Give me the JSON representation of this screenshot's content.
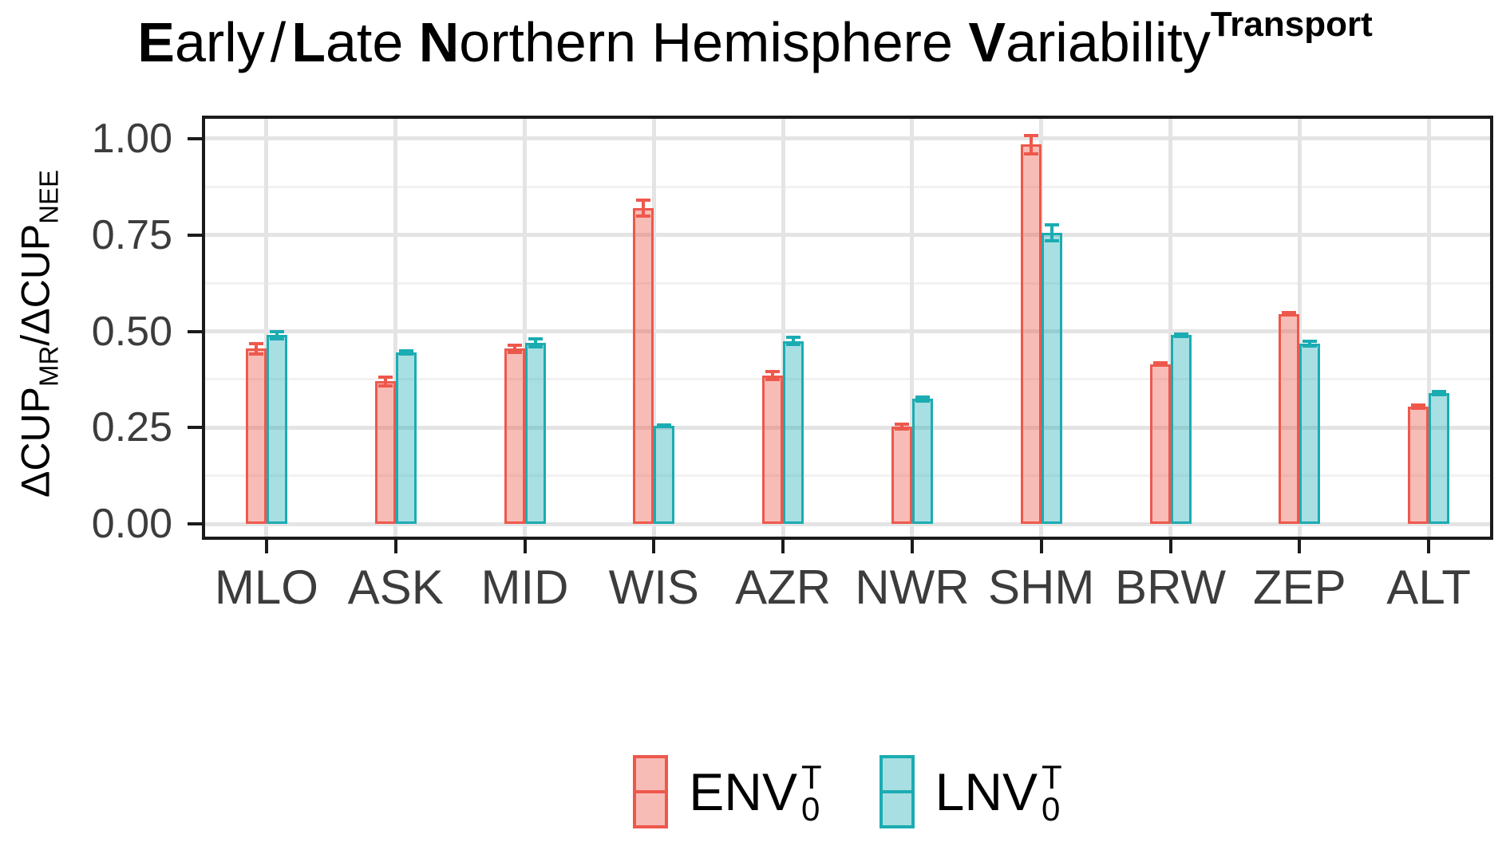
{
  "chart_data": {
    "type": "bar",
    "title": {
      "segments": [
        {
          "text": "E",
          "bold": true
        },
        {
          "text": "arly",
          "bold": false
        },
        {
          "text": "/",
          "bold": false,
          "slash": true
        },
        {
          "text": "L",
          "bold": true
        },
        {
          "text": "ate ",
          "bold": false
        },
        {
          "text": "N",
          "bold": true
        },
        {
          "text": "orthern Hemisphere ",
          "bold": false
        },
        {
          "text": "V",
          "bold": true
        },
        {
          "text": "ariability",
          "bold": false
        }
      ],
      "superscript": "Transport"
    },
    "ylabel_parts": [
      {
        "text": "ΔCUP",
        "sub": false
      },
      {
        "text": "MR",
        "sub": true
      },
      {
        "text": "/",
        "sub": false
      },
      {
        "text": "ΔCUP",
        "sub": false
      },
      {
        "text": "NEE",
        "sub": true
      }
    ],
    "categories": [
      "MLO",
      "ASK",
      "MID",
      "WIS",
      "AZR",
      "NWR",
      "SHM",
      "BRW",
      "ZEP",
      "ALT"
    ],
    "y_axis": {
      "tick_values": [
        0.0,
        0.25,
        0.5,
        0.75,
        1.0
      ],
      "tick_labels": [
        "0.00",
        "0.25",
        "0.50",
        "0.75",
        "1.00"
      ],
      "minor_values": [
        0.125,
        0.375,
        0.625,
        0.875
      ],
      "range": [
        -0.041,
        1.06
      ]
    },
    "series": [
      {
        "name": "ENV",
        "sup": "T",
        "sub": "0",
        "stroke": "#EE584C",
        "fill": "rgba(238,88,76,0.4)",
        "values": [
          0.455,
          0.37,
          0.455,
          0.82,
          0.385,
          0.253,
          0.985,
          0.415,
          0.545,
          0.305
        ],
        "errors": [
          0.015,
          0.013,
          0.011,
          0.022,
          0.012,
          0.008,
          0.026,
          0.005,
          0.005,
          0.006
        ]
      },
      {
        "name": "LNV",
        "sup": "T",
        "sub": "0",
        "stroke": "#1BACB2",
        "fill": "rgba(27,172,178,0.38)",
        "values": [
          0.49,
          0.445,
          0.47,
          0.255,
          0.475,
          0.325,
          0.755,
          0.49,
          0.468,
          0.34
        ],
        "errors": [
          0.012,
          0.006,
          0.013,
          0.004,
          0.011,
          0.007,
          0.023,
          0.005,
          0.009,
          0.007
        ]
      }
    ],
    "legend_position": "bottom",
    "grid": true
  },
  "colors": {
    "grid_major": "#E4E4E4",
    "grid_minor": "#F2F2F2",
    "axis": "#1B1B1B",
    "tick_text": "#3C3C3C",
    "title_text": "#000000",
    "background": "#FFFFFF"
  }
}
